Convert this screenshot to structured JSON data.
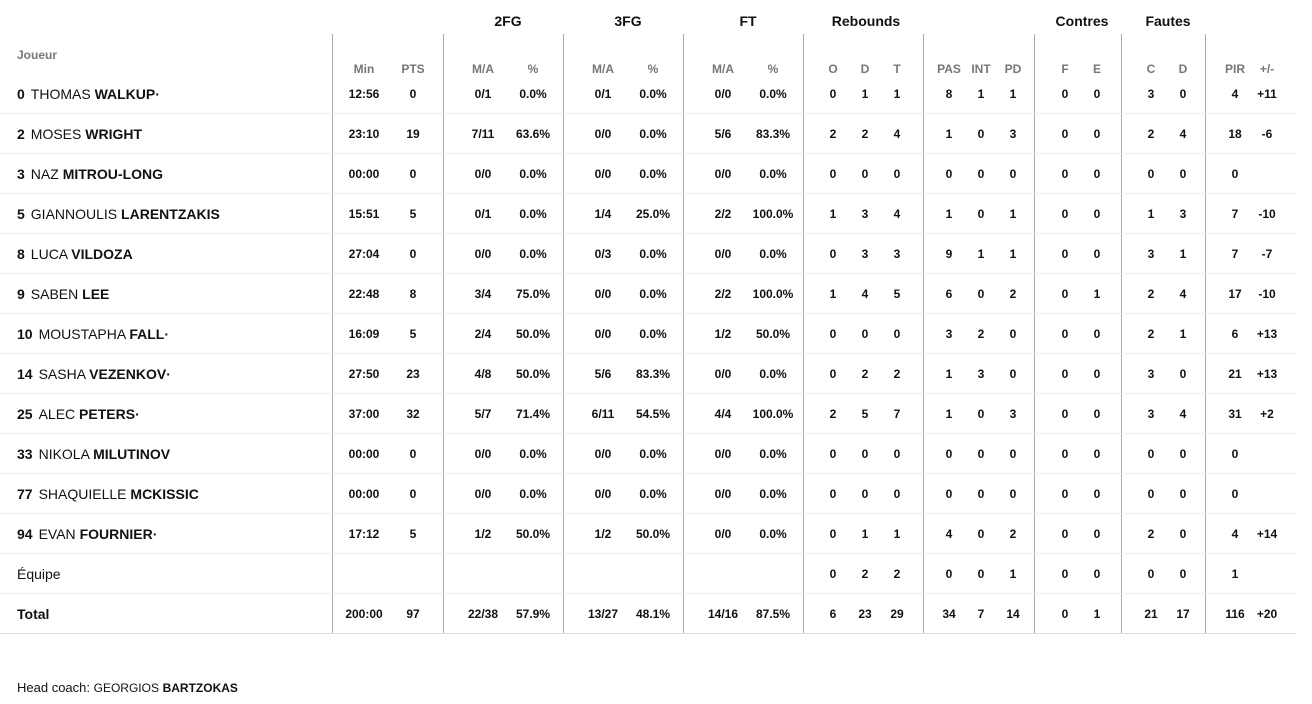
{
  "header": {
    "joueur": "Joueur",
    "groups": [
      "2FG",
      "3FG",
      "FT",
      "Rebounds",
      "Contres",
      "Fautes"
    ],
    "subs": [
      "Min",
      "PTS",
      "M/A",
      "%",
      "M/A",
      "%",
      "M/A",
      "%",
      "O",
      "D",
      "T",
      "PAS",
      "INT",
      "PD",
      "F",
      "E",
      "C",
      "D",
      "PIR",
      "+/-"
    ]
  },
  "players": [
    {
      "num": "0",
      "first": "THOMAS",
      "last": "WALKUP",
      "dot": "·",
      "cells": [
        "12:56",
        "0",
        "0/1",
        "0.0%",
        "0/1",
        "0.0%",
        "0/0",
        "0.0%",
        "0",
        "1",
        "1",
        "8",
        "1",
        "1",
        "0",
        "0",
        "3",
        "0",
        "4",
        "+11"
      ]
    },
    {
      "num": "2",
      "first": "MOSES",
      "last": "WRIGHT",
      "dot": "",
      "cells": [
        "23:10",
        "19",
        "7/11",
        "63.6%",
        "0/0",
        "0.0%",
        "5/6",
        "83.3%",
        "2",
        "2",
        "4",
        "1",
        "0",
        "3",
        "0",
        "0",
        "2",
        "4",
        "18",
        "-6"
      ]
    },
    {
      "num": "3",
      "first": "NAZ",
      "last": "MITROU-LONG",
      "dot": "",
      "cells": [
        "00:00",
        "0",
        "0/0",
        "0.0%",
        "0/0",
        "0.0%",
        "0/0",
        "0.0%",
        "0",
        "0",
        "0",
        "0",
        "0",
        "0",
        "0",
        "0",
        "0",
        "0",
        "0",
        ""
      ]
    },
    {
      "num": "5",
      "first": "GIANNOULIS",
      "last": "LARENTZAKIS",
      "dot": "",
      "cells": [
        "15:51",
        "5",
        "0/1",
        "0.0%",
        "1/4",
        "25.0%",
        "2/2",
        "100.0%",
        "1",
        "3",
        "4",
        "1",
        "0",
        "1",
        "0",
        "0",
        "1",
        "3",
        "7",
        "-10"
      ]
    },
    {
      "num": "8",
      "first": "LUCA",
      "last": "VILDOZA",
      "dot": "",
      "cells": [
        "27:04",
        "0",
        "0/0",
        "0.0%",
        "0/3",
        "0.0%",
        "0/0",
        "0.0%",
        "0",
        "3",
        "3",
        "9",
        "1",
        "1",
        "0",
        "0",
        "3",
        "1",
        "7",
        "-7"
      ]
    },
    {
      "num": "9",
      "first": "SABEN",
      "last": "LEE",
      "dot": "",
      "cells": [
        "22:48",
        "8",
        "3/4",
        "75.0%",
        "0/0",
        "0.0%",
        "2/2",
        "100.0%",
        "1",
        "4",
        "5",
        "6",
        "0",
        "2",
        "0",
        "1",
        "2",
        "4",
        "17",
        "-10"
      ]
    },
    {
      "num": "10",
      "first": "MOUSTAPHA",
      "last": "FALL",
      "dot": "·",
      "cells": [
        "16:09",
        "5",
        "2/4",
        "50.0%",
        "0/0",
        "0.0%",
        "1/2",
        "50.0%",
        "0",
        "0",
        "0",
        "3",
        "2",
        "0",
        "0",
        "0",
        "2",
        "1",
        "6",
        "+13"
      ]
    },
    {
      "num": "14",
      "first": "SASHA",
      "last": "VEZENKOV",
      "dot": "·",
      "cells": [
        "27:50",
        "23",
        "4/8",
        "50.0%",
        "5/6",
        "83.3%",
        "0/0",
        "0.0%",
        "0",
        "2",
        "2",
        "1",
        "3",
        "0",
        "0",
        "0",
        "3",
        "0",
        "21",
        "+13"
      ]
    },
    {
      "num": "25",
      "first": "ALEC",
      "last": "PETERS",
      "dot": "·",
      "cells": [
        "37:00",
        "32",
        "5/7",
        "71.4%",
        "6/11",
        "54.5%",
        "4/4",
        "100.0%",
        "2",
        "5",
        "7",
        "1",
        "0",
        "3",
        "0",
        "0",
        "3",
        "4",
        "31",
        "+2"
      ]
    },
    {
      "num": "33",
      "first": "NIKOLA",
      "last": "MILUTINOV",
      "dot": "",
      "cells": [
        "00:00",
        "0",
        "0/0",
        "0.0%",
        "0/0",
        "0.0%",
        "0/0",
        "0.0%",
        "0",
        "0",
        "0",
        "0",
        "0",
        "0",
        "0",
        "0",
        "0",
        "0",
        "0",
        ""
      ]
    },
    {
      "num": "77",
      "first": "SHAQUIELLE",
      "last": "MCKISSIC",
      "dot": "",
      "cells": [
        "00:00",
        "0",
        "0/0",
        "0.0%",
        "0/0",
        "0.0%",
        "0/0",
        "0.0%",
        "0",
        "0",
        "0",
        "0",
        "0",
        "0",
        "0",
        "0",
        "0",
        "0",
        "0",
        ""
      ]
    },
    {
      "num": "94",
      "first": "EVAN",
      "last": "FOURNIER",
      "dot": "·",
      "cells": [
        "17:12",
        "5",
        "1/2",
        "50.0%",
        "1/2",
        "50.0%",
        "0/0",
        "0.0%",
        "0",
        "1",
        "1",
        "4",
        "0",
        "2",
        "0",
        "0",
        "2",
        "0",
        "4",
        "+14"
      ]
    }
  ],
  "team": {
    "label": "Équipe",
    "cells": [
      "",
      "",
      "",
      "",
      "",
      "",
      "",
      "",
      "0",
      "2",
      "2",
      "0",
      "0",
      "1",
      "0",
      "0",
      "0",
      "0",
      "1",
      ""
    ]
  },
  "total": {
    "label": "Total",
    "cells": [
      "200:00",
      "97",
      "22/38",
      "57.9%",
      "13/27",
      "48.1%",
      "14/16",
      "87.5%",
      "6",
      "23",
      "29",
      "34",
      "7",
      "14",
      "0",
      "1",
      "21",
      "17",
      "116",
      "+20"
    ]
  },
  "coach": {
    "prefix": "Head coach:",
    "first": "GEORGIOS",
    "last": "BARTZOKAS"
  }
}
